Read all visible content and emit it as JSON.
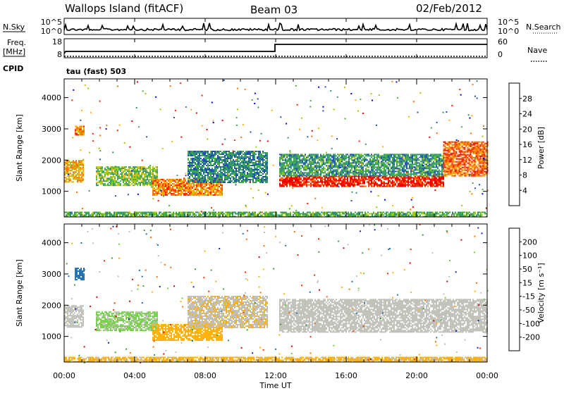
{
  "header": {
    "station": "Wallops Island (fitACF)",
    "beam": "Beam 03",
    "date": "02/Feb/2012"
  },
  "noise_panel": {
    "left_label": "N.Sky",
    "left_ticks": [
      "10^5",
      "10^0"
    ],
    "right_label": "N.Search",
    "right_ticks": [
      "10^5",
      "10^0"
    ]
  },
  "freq_panel": {
    "left_label_line1": "Freq.",
    "left_label_line2": "[MHz]",
    "left_ticks": [
      "18",
      "8"
    ],
    "right_label": "Nave",
    "right_ticks": [
      "60",
      "0"
    ],
    "cpid_label": "CPID",
    "cpid_text": "tau (fast) 503"
  },
  "chart_data": [
    {
      "type": "heatmap",
      "title": "",
      "ylabel": "Slant Range [km]",
      "yticks": [
        "4000",
        "3000",
        "2000",
        "1000"
      ],
      "ylim": [
        180,
        4600
      ],
      "xlim": [
        0,
        24
      ],
      "colorbar": {
        "label": "Power [dB]",
        "ticks": [
          "28",
          "24",
          "20",
          "16",
          "12",
          "8",
          "4"
        ],
        "range": [
          0,
          32
        ],
        "colors": [
          "#0000ff",
          "#1f4fb5",
          "#2f8f7a",
          "#3fb040",
          "#a0c800",
          "#ffb000",
          "#ff7000",
          "#ff2000",
          "#e80000"
        ]
      },
      "regions": [
        {
          "x0": 0.0,
          "x1": 1.1,
          "y0": 1300,
          "y1": 2000,
          "level": 20
        },
        {
          "x0": 0.6,
          "x1": 1.1,
          "y0": 2800,
          "y1": 3100,
          "level": 22
        },
        {
          "x0": 1.8,
          "x1": 5.3,
          "y0": 1200,
          "y1": 1800,
          "level": 14
        },
        {
          "x0": 5.0,
          "x1": 9.0,
          "y0": 900,
          "y1": 1400,
          "level": 22
        },
        {
          "x0": 7.0,
          "x1": 11.5,
          "y0": 1300,
          "y1": 2300,
          "level": 9
        },
        {
          "x0": 12.2,
          "x1": 21.5,
          "y0": 1150,
          "y1": 1500,
          "level": 28
        },
        {
          "x0": 12.2,
          "x1": 21.5,
          "y0": 1500,
          "y1": 2200,
          "level": 10
        },
        {
          "x0": 21.5,
          "x1": 24.0,
          "y0": 1500,
          "y1": 2600,
          "level": 24
        },
        {
          "x0": 0.0,
          "x1": 24.0,
          "y0": 200,
          "y1": 350,
          "level": 12
        }
      ]
    },
    {
      "type": "heatmap",
      "title": "",
      "ylabel": "Slant Range [km]",
      "yticks": [
        "4000",
        "3000",
        "2000",
        "1000"
      ],
      "ylim": [
        180,
        4600
      ],
      "xlim": [
        0,
        24
      ],
      "xticks": [
        "00:00",
        "04:00",
        "08:00",
        "12:00",
        "16:00",
        "20:00",
        "00:00"
      ],
      "xlabel": "Time UT",
      "colorbar": {
        "label": "Velocity [m s⁻¹]",
        "ticks": [
          "200",
          "100",
          "50",
          "15",
          "-15",
          "-50",
          "-100",
          "-200"
        ],
        "range": [
          -250,
          250
        ],
        "colors": [
          "#e00000",
          "#ff3000",
          "#ff7000",
          "#ffb000",
          "#c0c0b8",
          "#c0c0b8",
          "#70d040",
          "#2f9f40",
          "#1f6fb0",
          "#1020c0"
        ]
      },
      "regions": [
        {
          "x0": 0.0,
          "x1": 1.1,
          "y0": 1300,
          "y1": 2000,
          "velocity": 0
        },
        {
          "x0": 0.6,
          "x1": 1.1,
          "y0": 2800,
          "y1": 3200,
          "velocity": 180
        },
        {
          "x0": 1.8,
          "x1": 5.3,
          "y0": 1200,
          "y1": 1800,
          "velocity": 60
        },
        {
          "x0": 5.0,
          "x1": 9.0,
          "y0": 900,
          "y1": 1400,
          "velocity": -70
        },
        {
          "x0": 7.0,
          "x1": 11.5,
          "y0": 1300,
          "y1": 2300,
          "velocity": -40
        },
        {
          "x0": 12.2,
          "x1": 24.0,
          "y0": 1150,
          "y1": 2200,
          "velocity": 0
        },
        {
          "x0": 0.0,
          "x1": 24.0,
          "y0": 200,
          "y1": 350,
          "velocity": -60
        }
      ]
    }
  ]
}
